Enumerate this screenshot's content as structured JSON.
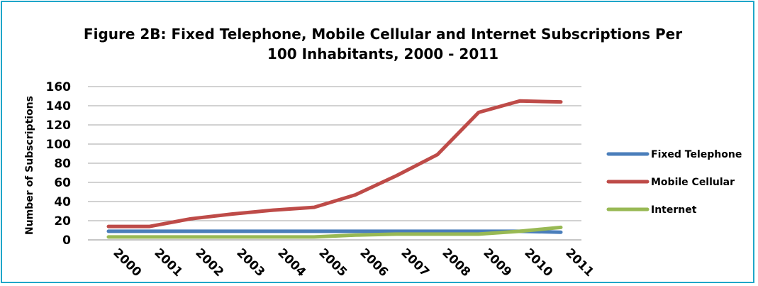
{
  "chart_data": {
    "type": "line",
    "title_lines": [
      "Figure 2B: Fixed Telephone, Mobile Cellular and Internet Subscriptions Per",
      "100 Inhabitants, 2000 - 2011"
    ],
    "ylabel": "Number of Subscriptions",
    "xlabel": "",
    "ylim": [
      0,
      160
    ],
    "yticks": [
      0,
      20,
      40,
      60,
      80,
      100,
      120,
      140,
      160
    ],
    "grid": true,
    "legend_position": "right",
    "categories": [
      "2000",
      "2001",
      "2002",
      "2003",
      "2004",
      "2005",
      "2006",
      "2007",
      "2008",
      "2009",
      "2010",
      "2011"
    ],
    "series": [
      {
        "name": "Fixed Telephone",
        "color": "#4a7ebb",
        "values": [
          9,
          9,
          9,
          9,
          9,
          9,
          9,
          9,
          9,
          9,
          9,
          8
        ]
      },
      {
        "name": "Mobile Cellular",
        "color": "#be4b48",
        "values": [
          14,
          14,
          22,
          27,
          31,
          34,
          47,
          67,
          89,
          133,
          145,
          144
        ]
      },
      {
        "name": "Internet",
        "color": "#98b954",
        "values": [
          3,
          3,
          3,
          3,
          3,
          3,
          5,
          6,
          6,
          6,
          9,
          13
        ]
      }
    ]
  }
}
